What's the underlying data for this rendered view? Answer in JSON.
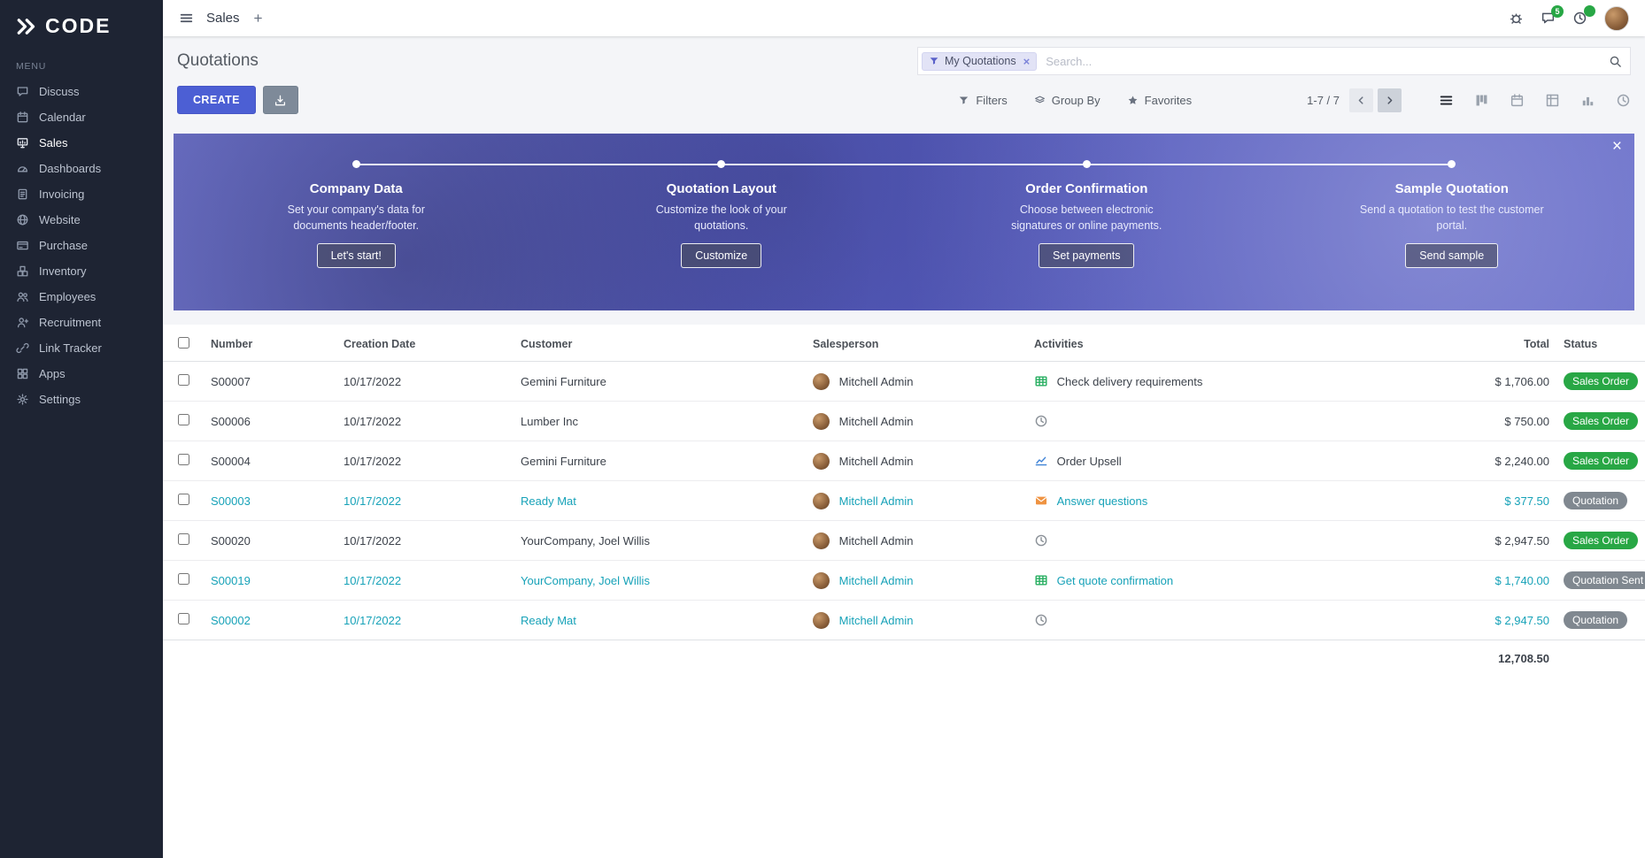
{
  "brand": {
    "name": "CODE"
  },
  "topbar": {
    "app": "Sales",
    "messages_badge": "5"
  },
  "sidebar": {
    "section": "MENU",
    "items": [
      {
        "label": "Discuss",
        "icon": "discuss"
      },
      {
        "label": "Calendar",
        "icon": "calendar"
      },
      {
        "label": "Sales",
        "icon": "sales",
        "active": true
      },
      {
        "label": "Dashboards",
        "icon": "dashboards"
      },
      {
        "label": "Invoicing",
        "icon": "invoicing"
      },
      {
        "label": "Website",
        "icon": "website"
      },
      {
        "label": "Purchase",
        "icon": "purchase"
      },
      {
        "label": "Inventory",
        "icon": "inventory"
      },
      {
        "label": "Employees",
        "icon": "employees"
      },
      {
        "label": "Recruitment",
        "icon": "recruitment"
      },
      {
        "label": "Link Tracker",
        "icon": "link"
      },
      {
        "label": "Apps",
        "icon": "apps"
      },
      {
        "label": "Settings",
        "icon": "settings"
      }
    ]
  },
  "control": {
    "title": "Quotations",
    "facet": "My Quotations",
    "facet_remove": "×",
    "search_placeholder": "Search...",
    "create": "CREATE",
    "filters": "Filters",
    "group_by": "Group By",
    "favorites": "Favorites",
    "pager": "1-7 / 7",
    "views": [
      "list",
      "kanban",
      "calendar",
      "pivot",
      "graph",
      "activity"
    ]
  },
  "banner": {
    "close": "×",
    "steps": [
      {
        "title": "Company Data",
        "desc": "Set your company's data for documents header/footer.",
        "button": "Let's start!"
      },
      {
        "title": "Quotation Layout",
        "desc": "Customize the look of your quotations.",
        "button": "Customize"
      },
      {
        "title": "Order Confirmation",
        "desc": "Choose between electronic signatures or online payments.",
        "button": "Set payments"
      },
      {
        "title": "Sample Quotation",
        "desc": "Send a quotation to test the customer portal.",
        "button": "Send sample"
      }
    ]
  },
  "table": {
    "headers": {
      "number": "Number",
      "date": "Creation Date",
      "customer": "Customer",
      "salesperson": "Salesperson",
      "activities": "Activities",
      "total": "Total",
      "status": "Status"
    },
    "rows": [
      {
        "number": "S00007",
        "date": "10/17/2022",
        "customer": "Gemini Furniture",
        "salesperson": "Mitchell Admin",
        "activity_icon": "table",
        "activity": "Check delivery requirements",
        "total": "$ 1,706.00",
        "status": "Sales Order",
        "status_type": "success",
        "teal": false
      },
      {
        "number": "S00006",
        "date": "10/17/2022",
        "customer": "Lumber Inc",
        "salesperson": "Mitchell Admin",
        "activity_icon": "clock",
        "activity": "",
        "total": "$ 750.00",
        "status": "Sales Order",
        "status_type": "success",
        "teal": false
      },
      {
        "number": "S00004",
        "date": "10/17/2022",
        "customer": "Gemini Furniture",
        "salesperson": "Mitchell Admin",
        "activity_icon": "chart",
        "activity": "Order Upsell",
        "total": "$ 2,240.00",
        "status": "Sales Order",
        "status_type": "success",
        "teal": false
      },
      {
        "number": "S00003",
        "date": "10/17/2022",
        "customer": "Ready Mat",
        "salesperson": "Mitchell Admin",
        "activity_icon": "envelope",
        "activity": "Answer questions",
        "total": "$ 377.50",
        "status": "Quotation",
        "status_type": "secondary",
        "teal": true
      },
      {
        "number": "S00020",
        "date": "10/17/2022",
        "customer": "YourCompany, Joel Willis",
        "salesperson": "Mitchell Admin",
        "activity_icon": "clock",
        "activity": "",
        "total": "$ 2,947.50",
        "status": "Sales Order",
        "status_type": "success",
        "teal": false
      },
      {
        "number": "S00019",
        "date": "10/17/2022",
        "customer": "YourCompany, Joel Willis",
        "salesperson": "Mitchell Admin",
        "activity_icon": "table",
        "activity": "Get quote confirmation",
        "total": "$ 1,740.00",
        "status": "Quotation Sent",
        "status_type": "secondary",
        "teal": true
      },
      {
        "number": "S00002",
        "date": "10/17/2022",
        "customer": "Ready Mat",
        "salesperson": "Mitchell Admin",
        "activity_icon": "clock",
        "activity": "",
        "total": "$ 2,947.50",
        "status": "Quotation",
        "status_type": "secondary",
        "teal": true
      }
    ],
    "sum_total": "12,708.50"
  },
  "colors": {
    "accent": "#4c5fd4",
    "teal_link": "#17a2b8",
    "status_green": "#28a745",
    "status_gray": "#808890",
    "sidebar_bg": "#1e2433",
    "banner_purple": "#5d63cb"
  }
}
